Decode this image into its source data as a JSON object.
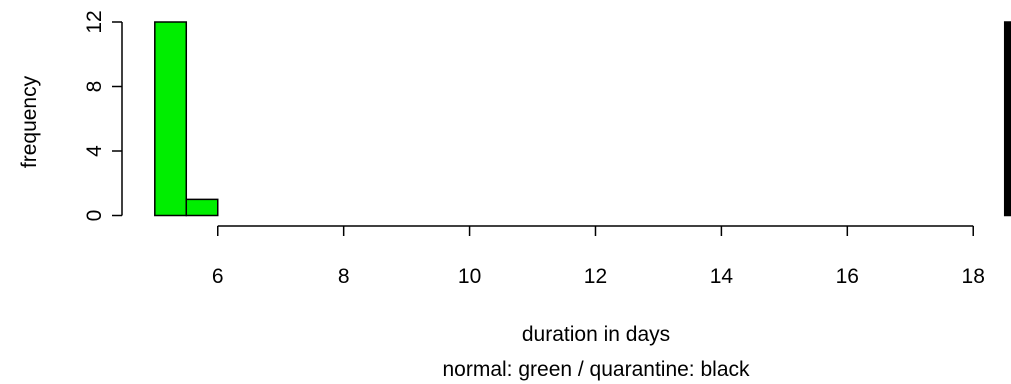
{
  "chart_data": {
    "type": "bar",
    "xlabel": "duration in days",
    "subtitle": "normal: green / quarantine: black",
    "ylabel": "frequency",
    "xlim": [
      4.9,
      18.6
    ],
    "ylim": [
      0,
      12
    ],
    "x_ticks": [
      "6",
      "8",
      "10",
      "12",
      "14",
      "16",
      "18"
    ],
    "y_ticks": [
      "0",
      "4",
      "8",
      "12"
    ],
    "colors": {
      "normal": "#00ee00",
      "quarantine": "#000000"
    },
    "series": [
      {
        "color_key": "normal",
        "bins": [
          {
            "start": 5.0,
            "end": 5.5,
            "count": 12
          },
          {
            "start": 5.5,
            "end": 6.0,
            "count": 1
          },
          {
            "start": 6.0,
            "end": 18.5,
            "count": 0
          }
        ]
      },
      {
        "color_key": "quarantine",
        "bins": [
          {
            "start": 18.5,
            "end": 18.6,
            "count": 12
          }
        ]
      }
    ]
  }
}
